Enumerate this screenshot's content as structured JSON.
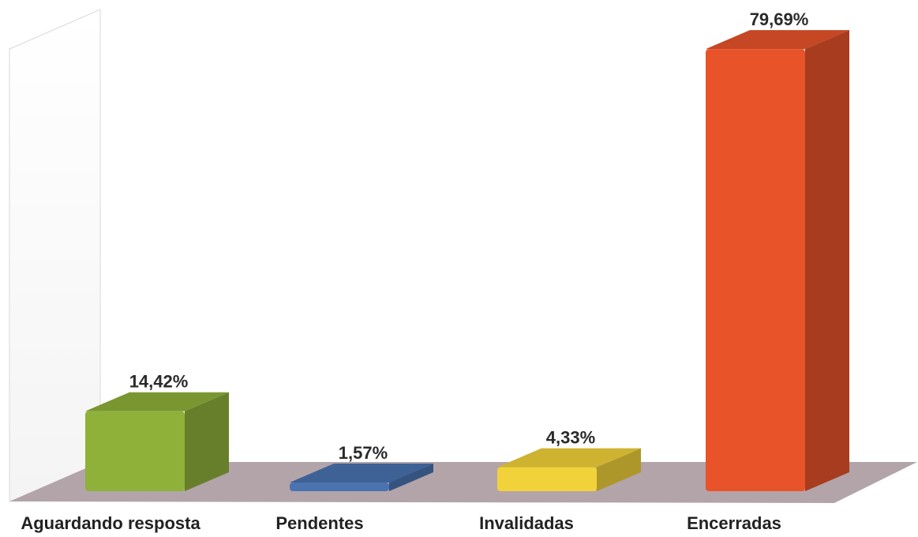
{
  "chart_data": {
    "type": "bar",
    "style": "3d",
    "categories": [
      "Aguardando resposta",
      "Pendentes",
      "Invalidadas",
      "Encerradas"
    ],
    "values": [
      14.42,
      1.57,
      4.33,
      79.69
    ],
    "data_labels": [
      "14,42%",
      "1,57%",
      "4,33%",
      "79,69%"
    ],
    "colors": [
      "#8fb13a",
      "#4a73b0",
      "#f2d23a",
      "#e8532a"
    ],
    "ylim": [
      0,
      80
    ],
    "grid": false,
    "legend": "none",
    "floor_color": "#b3a4aa"
  }
}
